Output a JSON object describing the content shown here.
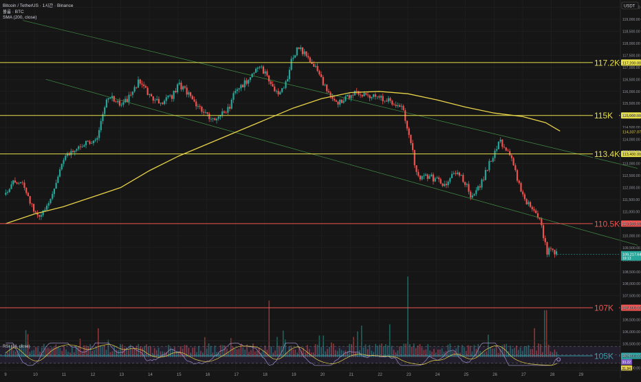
{
  "legend": {
    "line1": "Bitcoin / TetherUS · 1시간 · Binance",
    "line2": "볼륨 · BTC",
    "line3": "SMA (200, close)"
  },
  "rsi_label": "RSI (14, close)",
  "currency_label": "USDT",
  "colors": {
    "background": "#161616",
    "bull": "#26a69a",
    "bear": "#ef5350",
    "sma": "#e8d34a",
    "level_yellow": "#e8e04a",
    "level_red": "#ef5350",
    "channel": "#4caf50",
    "rsi_line": "#b3a0e6",
    "rsi_ma": "#e8d34a",
    "grid": "#222222",
    "axis_text": "#9598a1"
  },
  "chart_data": {
    "type": "candlestick",
    "title": "Bitcoin / TetherUS · 1시간 · Binance",
    "y_ticks": [
      119500,
      119000,
      118500,
      118000,
      117500,
      117000,
      116500,
      116000,
      115500,
      115000,
      114500,
      114000,
      113500,
      113000,
      112500,
      112000,
      111500,
      111000,
      110500,
      110000,
      109500,
      109000,
      108500,
      108000,
      107500,
      107000,
      106500,
      106000,
      105500,
      105000,
      104500
    ],
    "x_ticks": [
      "9",
      "10",
      "11",
      "12",
      "13",
      "14",
      "15",
      "16",
      "17",
      "18",
      "19",
      "20",
      "21",
      "22",
      "23",
      "24",
      "25",
      "26",
      "27",
      "28",
      "29"
    ],
    "ohlc_path": [
      [
        9.0,
        111700
      ],
      [
        9.3,
        112300
      ],
      [
        9.6,
        112100
      ],
      [
        9.8,
        111500
      ],
      [
        10.0,
        111000
      ],
      [
        10.2,
        110800
      ],
      [
        10.4,
        111200
      ],
      [
        10.6,
        111700
      ],
      [
        10.8,
        112300
      ],
      [
        11.0,
        113200
      ],
      [
        11.2,
        113400
      ],
      [
        11.4,
        113600
      ],
      [
        11.7,
        113800
      ],
      [
        12.0,
        113900
      ],
      [
        12.2,
        114100
      ],
      [
        12.4,
        115200
      ],
      [
        12.6,
        115800
      ],
      [
        12.8,
        115600
      ],
      [
        13.0,
        115400
      ],
      [
        13.2,
        115600
      ],
      [
        13.4,
        115900
      ],
      [
        13.6,
        116400
      ],
      [
        13.9,
        116000
      ],
      [
        14.2,
        115600
      ],
      [
        14.5,
        115600
      ],
      [
        14.8,
        115800
      ],
      [
        15.0,
        116300
      ],
      [
        15.3,
        116000
      ],
      [
        15.6,
        115500
      ],
      [
        15.9,
        115100
      ],
      [
        16.2,
        114800
      ],
      [
        16.5,
        115000
      ],
      [
        16.8,
        115400
      ],
      [
        17.0,
        116100
      ],
      [
        17.3,
        116300
      ],
      [
        17.6,
        116800
      ],
      [
        17.9,
        117000
      ],
      [
        18.1,
        116600
      ],
      [
        18.3,
        116200
      ],
      [
        18.5,
        115800
      ],
      [
        18.8,
        116500
      ],
      [
        19.0,
        117500
      ],
      [
        19.2,
        117800
      ],
      [
        19.4,
        117600
      ],
      [
        19.7,
        117200
      ],
      [
        19.9,
        116800
      ],
      [
        20.1,
        116200
      ],
      [
        20.3,
        115800
      ],
      [
        20.5,
        115500
      ],
      [
        20.8,
        115700
      ],
      [
        21.1,
        115900
      ],
      [
        21.4,
        115900
      ],
      [
        21.7,
        115800
      ],
      [
        22.0,
        115700
      ],
      [
        22.3,
        115600
      ],
      [
        22.6,
        115500
      ],
      [
        22.8,
        115300
      ],
      [
        22.95,
        114700
      ],
      [
        23.1,
        114000
      ],
      [
        23.25,
        112800
      ],
      [
        23.4,
        112300
      ],
      [
        23.7,
        112500
      ],
      [
        24.0,
        112300
      ],
      [
        24.3,
        112100
      ],
      [
        24.5,
        112500
      ],
      [
        24.7,
        112700
      ],
      [
        25.0,
        112200
      ],
      [
        25.2,
        111600
      ],
      [
        25.4,
        111900
      ],
      [
        25.6,
        112300
      ],
      [
        25.8,
        112900
      ],
      [
        26.0,
        113400
      ],
      [
        26.2,
        113900
      ],
      [
        26.4,
        113700
      ],
      [
        26.6,
        113200
      ],
      [
        26.8,
        112400
      ],
      [
        27.0,
        111700
      ],
      [
        27.2,
        111300
      ],
      [
        27.4,
        111000
      ],
      [
        27.6,
        110600
      ],
      [
        27.75,
        109800
      ],
      [
        27.85,
        109300
      ],
      [
        28.0,
        109500
      ],
      [
        28.2,
        109217
      ]
    ],
    "sma_200": [
      [
        9.0,
        110500
      ],
      [
        10.0,
        110900
      ],
      [
        11.0,
        111200
      ],
      [
        12.0,
        111600
      ],
      [
        13.0,
        112000
      ],
      [
        14.0,
        112700
      ],
      [
        15.0,
        113300
      ],
      [
        16.0,
        113800
      ],
      [
        17.0,
        114300
      ],
      [
        18.0,
        114800
      ],
      [
        19.0,
        115300
      ],
      [
        20.0,
        115700
      ],
      [
        21.0,
        115950
      ],
      [
        22.0,
        116000
      ],
      [
        23.0,
        115900
      ],
      [
        24.0,
        115650
      ],
      [
        25.0,
        115350
      ],
      [
        26.0,
        115100
      ],
      [
        27.0,
        114950
      ],
      [
        27.8,
        114700
      ],
      [
        28.3,
        114350
      ]
    ],
    "levels": [
      {
        "price": 117200,
        "label": "117.2K",
        "tag": "117,200.00",
        "color": "yellow"
      },
      {
        "price": 115000,
        "label": "115K",
        "tag": "115,000.00",
        "color": "yellow"
      },
      {
        "price": 113400,
        "label": "113.4K",
        "tag": "113,400.00",
        "color": "yellow"
      },
      {
        "price": 110500,
        "label": "110.5K",
        "tag": "110,500.00",
        "color": "red"
      },
      {
        "price": 107000,
        "label": "107K",
        "tag": "107,000.00",
        "color": "red"
      },
      {
        "price": 105000,
        "label": "105K",
        "tag": "105,000.00",
        "color": "teal"
      }
    ],
    "channel_upper": [
      [
        9.6,
        118950
      ],
      [
        31.0,
        112800
      ]
    ],
    "channel_lower": [
      [
        10.4,
        116500
      ],
      [
        31.0,
        109600
      ]
    ],
    "sma_value_tag": "114,337.07",
    "last_price_tag": "109,217.64",
    "countdown_tag": "19:13",
    "rsi": {
      "ylim": [
        20,
        80
      ],
      "upper": 70,
      "middle": 50,
      "lower": 30,
      "value_tag_1": "33.22",
      "value_tag_2": "31.94",
      "tick_50": "50.00"
    },
    "volume_tag": "423",
    "xlim": [
      8.8,
      30.4
    ],
    "ylim": [
      104400,
      119800
    ]
  }
}
